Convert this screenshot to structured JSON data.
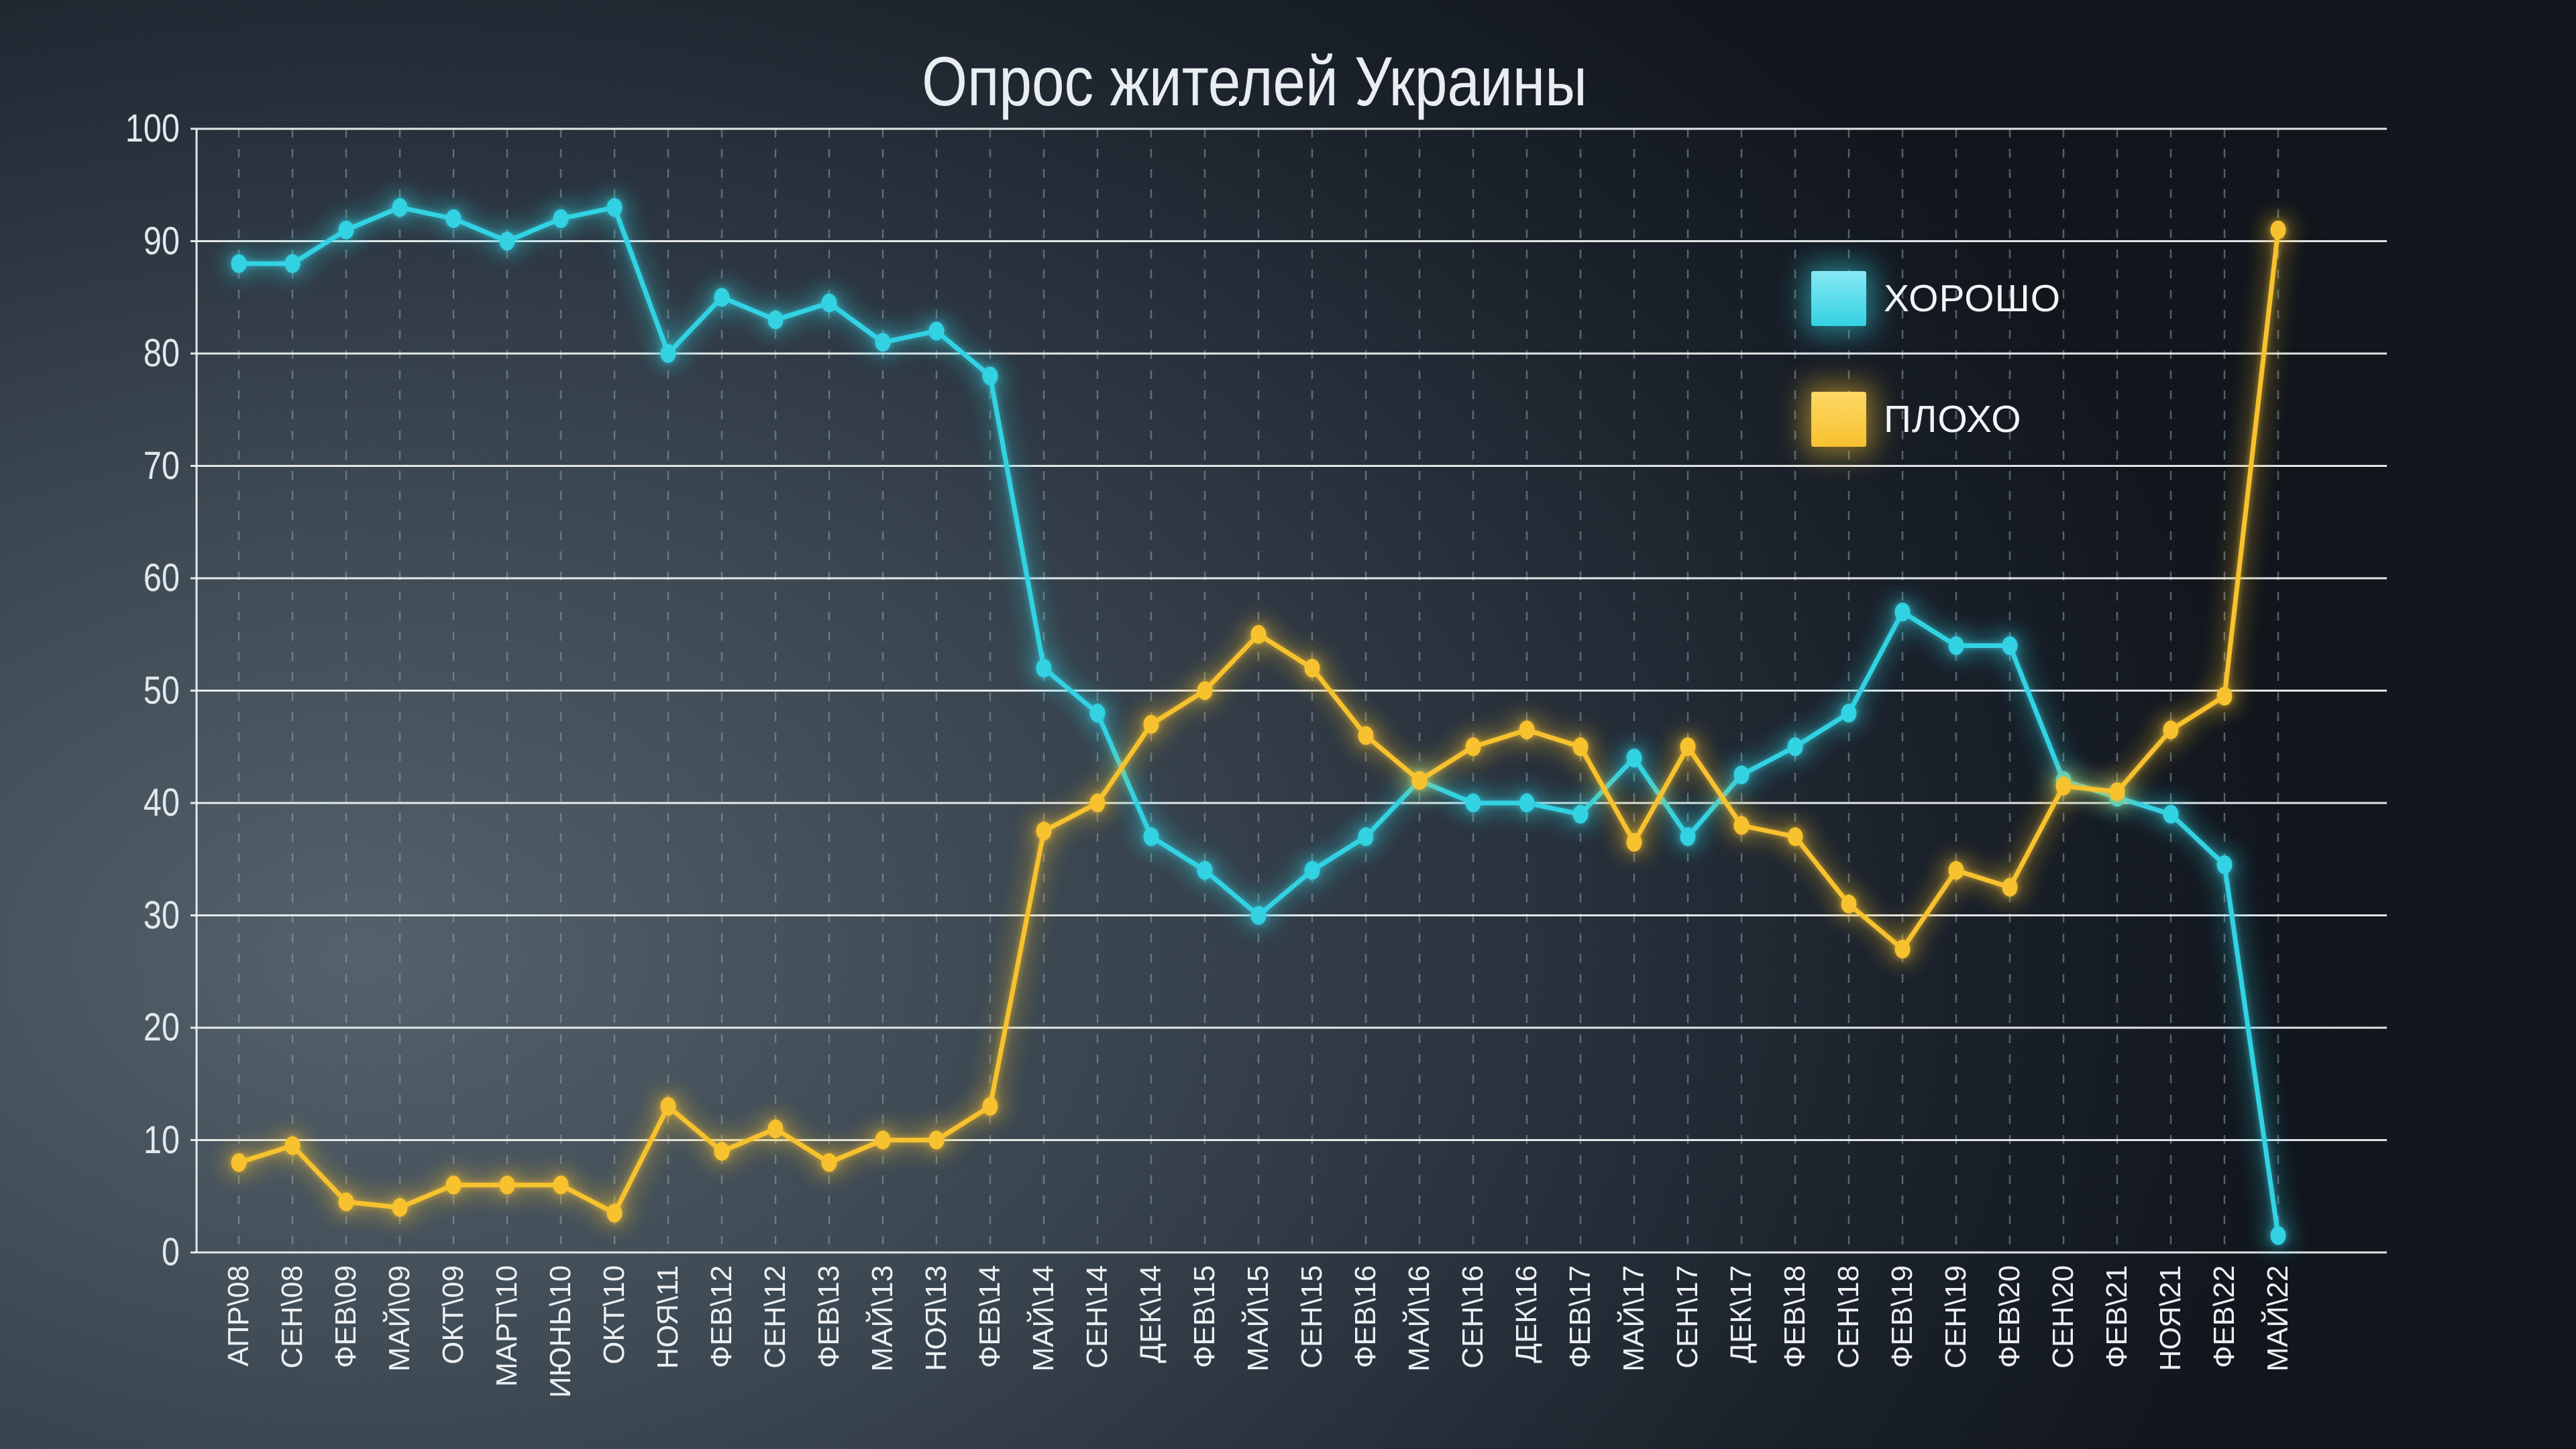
{
  "title": "Опрос жителей Украины",
  "legend": {
    "items": [
      {
        "label": "ХОРОШО",
        "color": "#2fd3e4",
        "color_light": "#86e9f6",
        "glow": "rgba(47,211,228,0.55)"
      },
      {
        "label": "ПЛОХО",
        "color": "#f9c22b",
        "color_light": "#ffd863",
        "glow": "rgba(249,194,43,0.55)"
      }
    ]
  },
  "chart_data": {
    "type": "line",
    "title": "Опрос жителей Украины",
    "xlabel": "",
    "ylabel": "",
    "ylim": [
      0,
      100
    ],
    "yticks": [
      100,
      90,
      80,
      70,
      60,
      50,
      40,
      30,
      20,
      10,
      0
    ],
    "grid": "horizontal solid white lines every 10; vertical dashed guide per category",
    "legend_position": "upper right inside plot",
    "categories": [
      "АПР\\08",
      "СЕН\\08",
      "ФЕВ\\09",
      "МАЙ\\09",
      "ОКТ\\09",
      "МАРТ\\10",
      "ИЮНЬ\\10",
      "ОКТ\\10",
      "НОЯ\\11",
      "ФЕВ\\12",
      "СЕН\\12",
      "ФЕВ\\13",
      "МАЙ\\13",
      "НОЯ\\13",
      "ФЕВ\\14",
      "МАЙ\\14",
      "СЕН\\14",
      "ДЕК\\14",
      "ФЕВ\\15",
      "МАЙ\\15",
      "СЕН\\15",
      "ФЕВ\\16",
      "МАЙ\\16",
      "СЕН\\16",
      "ДЕК\\16",
      "ФЕВ\\17",
      "МАЙ\\17",
      "СЕН\\17",
      "ДЕК\\17",
      "ФЕВ\\18",
      "СЕН\\18",
      "ФЕВ\\19",
      "СЕН\\19",
      "ФЕВ\\20",
      "СЕН\\20",
      "ФЕВ\\21",
      "НОЯ\\21",
      "ФЕВ\\22",
      "МАЙ\\22"
    ],
    "series": [
      {
        "id": "horosho",
        "name": "ХОРОШО",
        "color": "#2fd3e4",
        "glow": "rgba(47,211,228,0.7)",
        "values": [
          88,
          88,
          91,
          93,
          92,
          90,
          92,
          93,
          80,
          85,
          83,
          84.5,
          81,
          82,
          78,
          52,
          48,
          37,
          34,
          30,
          34,
          37,
          42,
          40,
          40,
          39,
          44,
          37,
          42.5,
          45,
          48,
          57,
          54,
          54,
          42,
          40.5,
          39,
          34.5,
          1.5
        ]
      },
      {
        "id": "ploho",
        "name": "ПЛОХО",
        "color": "#f9c22b",
        "glow": "rgba(249,194,43,0.7)",
        "values": [
          8,
          9.5,
          4.5,
          4,
          6,
          6,
          6,
          3.5,
          13,
          9,
          11,
          8,
          10,
          10,
          13,
          37.5,
          40,
          47,
          50,
          55,
          52,
          46,
          42,
          45,
          46.5,
          45,
          36.5,
          45,
          38,
          37,
          31,
          27,
          34,
          32.5,
          41.5,
          41,
          46.5,
          49.5,
          91
        ]
      }
    ]
  }
}
